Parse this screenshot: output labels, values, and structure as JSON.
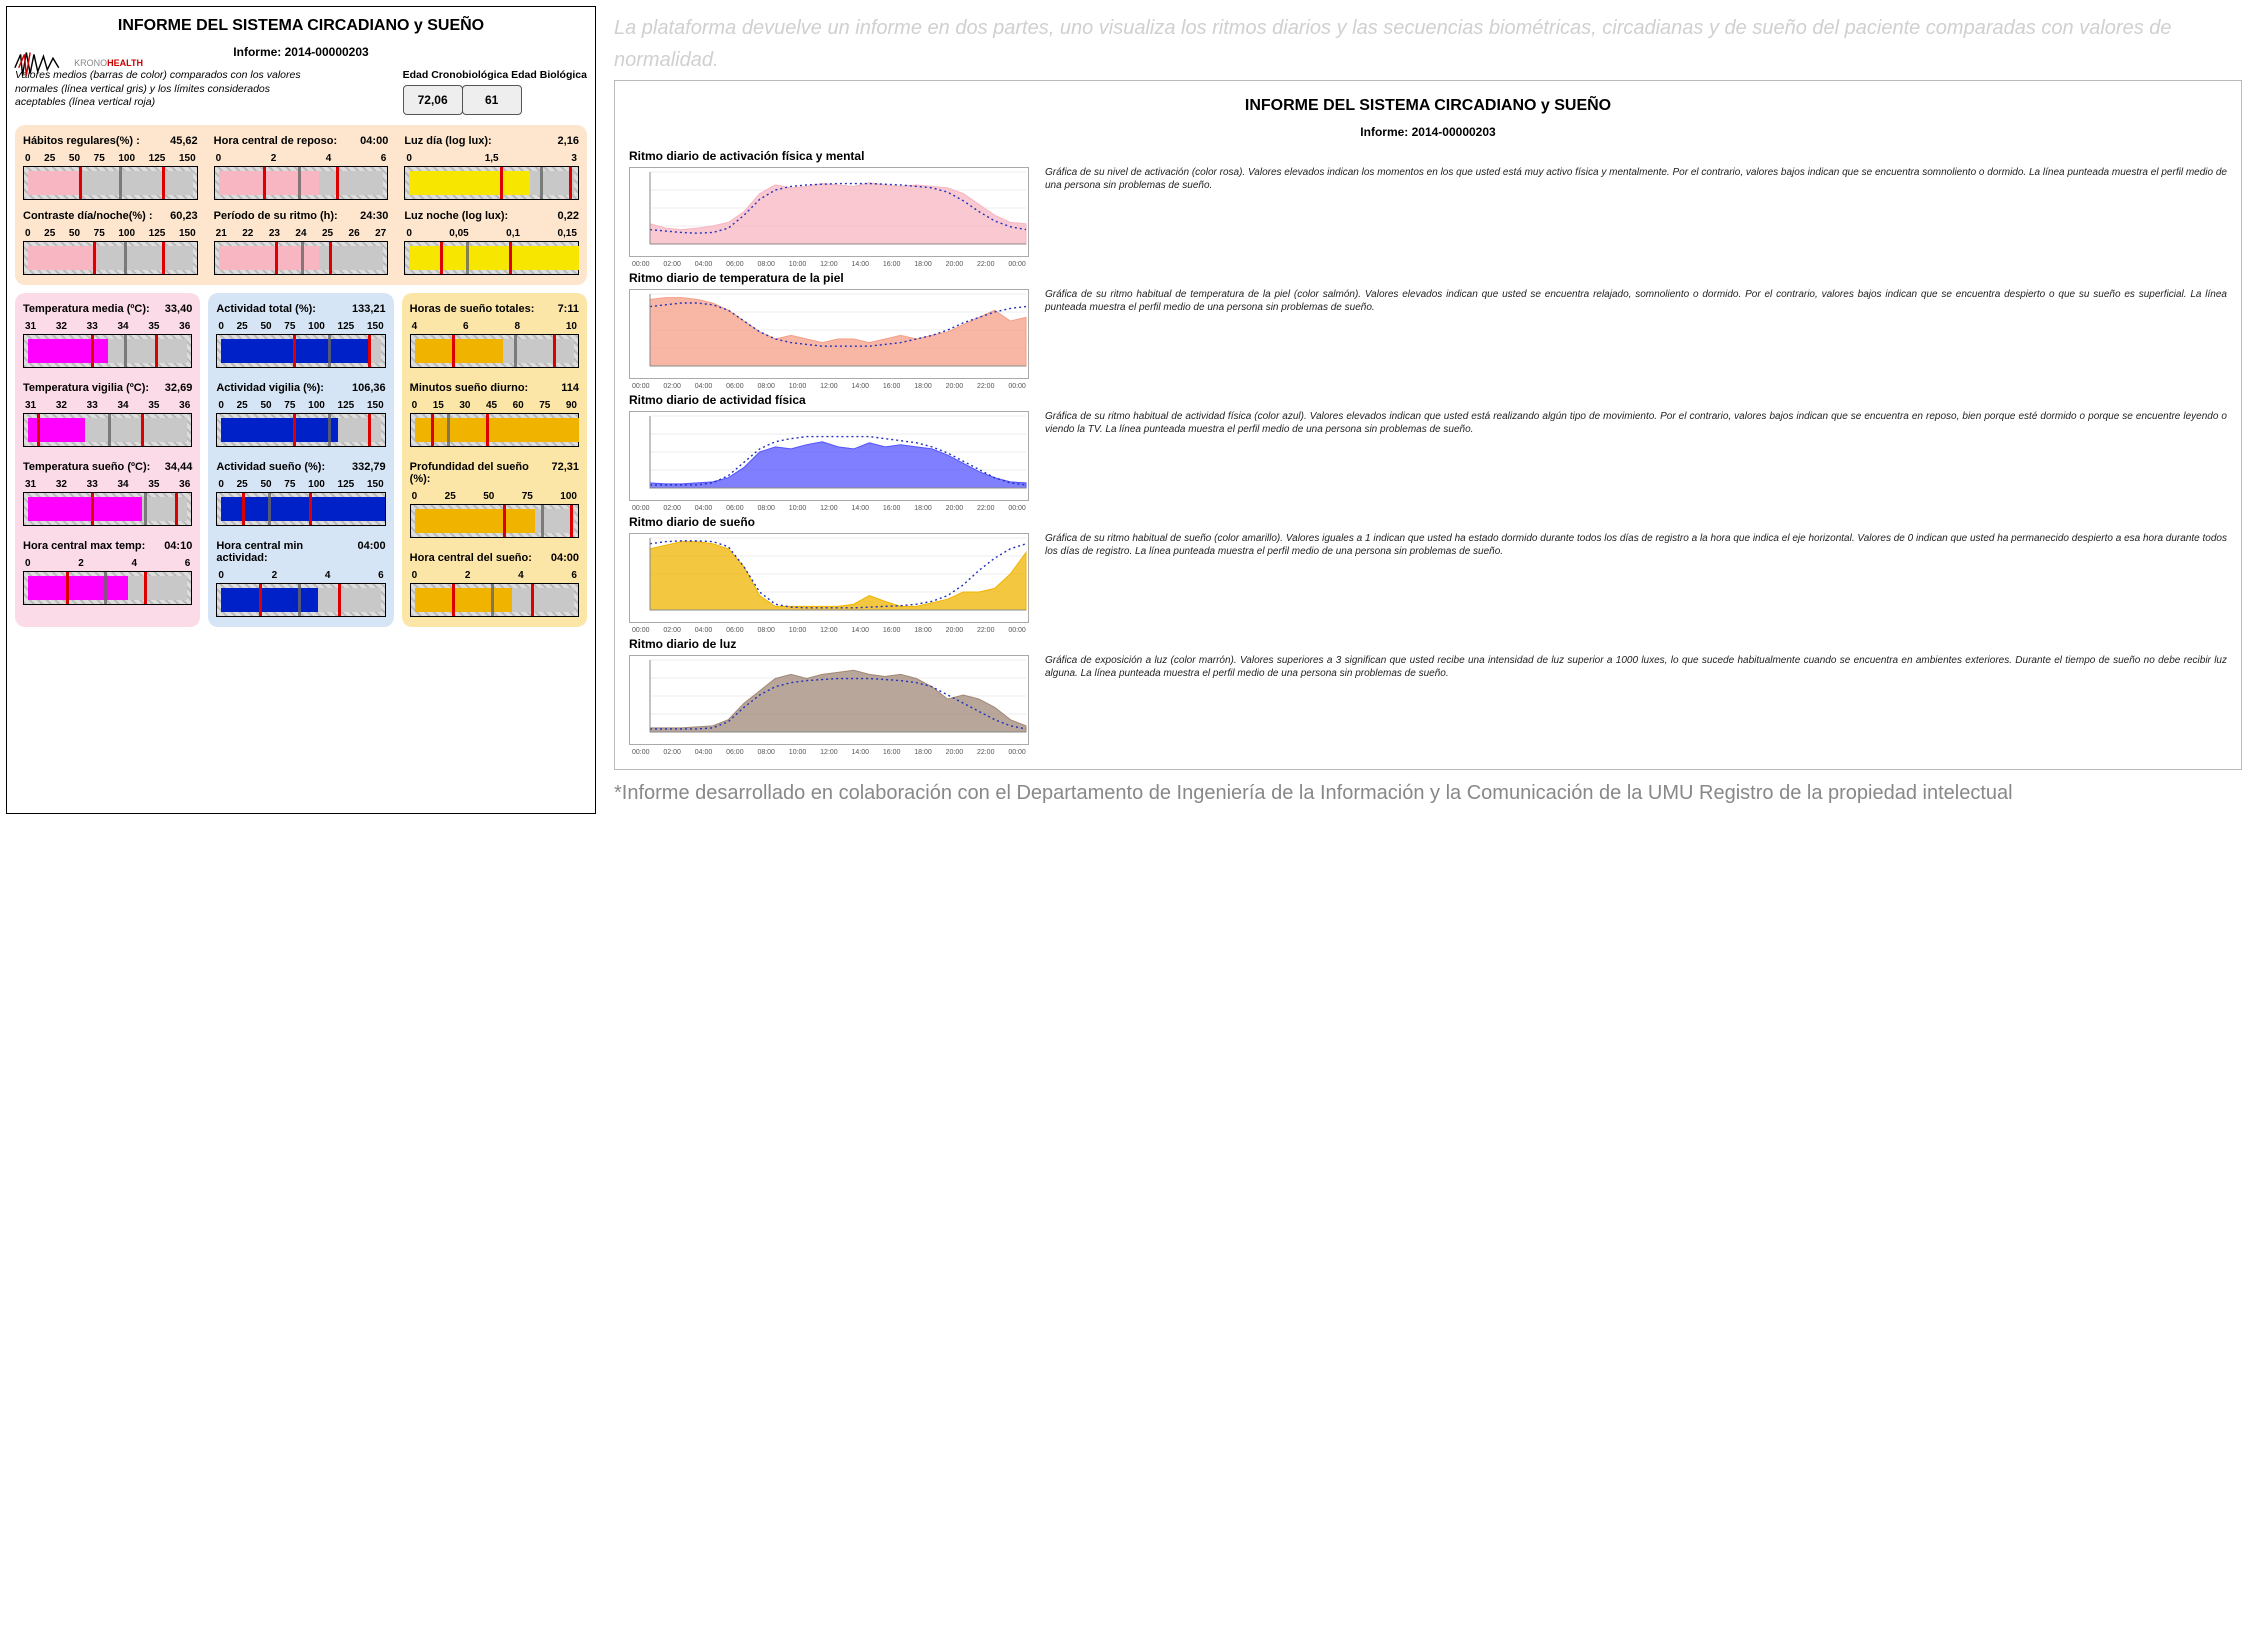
{
  "left": {
    "title": "INFORME DEL SISTEMA CIRCADIANO y SUEÑO",
    "informe_label": "Informe: 2014-00000203",
    "caption": "Valores medios (barras de color) comparados con los valores normales (línea vertical gris) y los límites considerados aceptables (línea vertical roja)",
    "age_header": "Edad Cronobiológica Edad Biológica",
    "edad_crono": "72,06",
    "edad_bio": "61",
    "top_metrics": [
      {
        "label": "Hábitos regulares(%) :",
        "value": "45,62",
        "ticks": [
          "0",
          "25",
          "50",
          "75",
          "100",
          "125",
          "150"
        ],
        "color": "#f7b6c1",
        "fill_pct": 30,
        "gray_pct": 55,
        "redA_pct": 32,
        "redB_pct": 80
      },
      {
        "label": "Hora central de reposo:",
        "value": "04:00",
        "ticks": [
          "0",
          "2",
          "4",
          "6"
        ],
        "color": "#f7b6c1",
        "fill_pct": 58,
        "gray_pct": 48,
        "redA_pct": 28,
        "redB_pct": 70
      },
      {
        "label": "Luz día (log lux):",
        "value": "2,16",
        "ticks": [
          "0",
          "1,5",
          "3"
        ],
        "color": "#f7e600",
        "fill_pct": 70,
        "gray_pct": 78,
        "redA_pct": 55,
        "redB_pct": 95
      },
      {
        "label": "Contraste día/noche(%) :",
        "value": "60,23",
        "ticks": [
          "0",
          "25",
          "50",
          "75",
          "100",
          "125",
          "150"
        ],
        "color": "#f7b6c1",
        "fill_pct": 40,
        "gray_pct": 58,
        "redA_pct": 40,
        "redB_pct": 80
      },
      {
        "label": "Período de su ritmo (h):",
        "value": "24:30",
        "ticks": [
          "21",
          "22",
          "23",
          "24",
          "25",
          "26",
          "27"
        ],
        "color": "#f7b6c1",
        "fill_pct": 58,
        "gray_pct": 50,
        "redA_pct": 35,
        "redB_pct": 66
      },
      {
        "label": "Luz noche (log lux):",
        "value": "0,22",
        "ticks": [
          "0",
          "0,05",
          "0,1",
          "0,15"
        ],
        "color": "#f7e600",
        "fill_pct": 98,
        "gray_pct": 35,
        "redA_pct": 20,
        "redB_pct": 60
      }
    ],
    "columns": [
      {
        "bg": "pink",
        "bar_color": "#ff00ff",
        "metrics": [
          {
            "label": "Temperatura media (ºC):",
            "value": "33,40",
            "ticks": [
              "31",
              "32",
              "33",
              "34",
              "35",
              "36"
            ],
            "fill_pct": 48,
            "gray_pct": 60,
            "redA_pct": 40,
            "redB_pct": 78
          },
          {
            "label": "Temperatura vigilia (ºC):",
            "value": "32,69",
            "ticks": [
              "31",
              "32",
              "33",
              "34",
              "35",
              "36"
            ],
            "fill_pct": 34,
            "gray_pct": 50,
            "redA_pct": 8,
            "redB_pct": 70
          },
          {
            "label": "Temperatura sueño (ºC):",
            "value": "34,44",
            "ticks": [
              "31",
              "32",
              "33",
              "34",
              "35",
              "36"
            ],
            "fill_pct": 68,
            "gray_pct": 72,
            "redA_pct": 40,
            "redB_pct": 90
          },
          {
            "label": "Hora central max temp:",
            "value": "04:10",
            "ticks": [
              "0",
              "2",
              "4",
              "6"
            ],
            "fill_pct": 60,
            "gray_pct": 48,
            "redA_pct": 25,
            "redB_pct": 72
          }
        ]
      },
      {
        "bg": "blue",
        "bar_color": "#0020c8",
        "metrics": [
          {
            "label": "Actividad total (%):",
            "value": "133,21",
            "ticks": [
              "0",
              "25",
              "50",
              "75",
              "100",
              "125",
              "150"
            ],
            "fill_pct": 88,
            "gray_pct": 66,
            "redA_pct": 45,
            "redB_pct": 90
          },
          {
            "label": "Actividad vigilia (%):",
            "value": "106,36",
            "ticks": [
              "0",
              "25",
              "50",
              "75",
              "100",
              "125",
              "150"
            ],
            "fill_pct": 70,
            "gray_pct": 66,
            "redA_pct": 45,
            "redB_pct": 90
          },
          {
            "label": "Actividad sueño (%):",
            "value": "332,79",
            "ticks": [
              "0",
              "25",
              "50",
              "75",
              "100",
              "125",
              "150"
            ],
            "fill_pct": 98,
            "gray_pct": 30,
            "redA_pct": 15,
            "redB_pct": 55
          },
          {
            "label": "Hora central min actividad:",
            "value": "04:00",
            "ticks": [
              "0",
              "2",
              "4",
              "6"
            ],
            "fill_pct": 58,
            "gray_pct": 48,
            "redA_pct": 25,
            "redB_pct": 72
          }
        ]
      },
      {
        "bg": "gold",
        "bar_color": "#f0b400",
        "metrics": [
          {
            "label": "Horas de sueño totales:",
            "value": "7:11",
            "ticks": [
              "4",
              "6",
              "8",
              "10"
            ],
            "fill_pct": 53,
            "gray_pct": 62,
            "redA_pct": 25,
            "redB_pct": 85
          },
          {
            "label": "Minutos sueño diurno:",
            "value": "114",
            "ticks": [
              "0",
              "15",
              "30",
              "45",
              "60",
              "75",
              "90"
            ],
            "fill_pct": 98,
            "gray_pct": 22,
            "redA_pct": 12,
            "redB_pct": 45
          },
          {
            "label": "Profundidad del sueño (%):",
            "value": "72,31",
            "ticks": [
              "0",
              "25",
              "50",
              "75",
              "100"
            ],
            "fill_pct": 72,
            "gray_pct": 78,
            "redA_pct": 55,
            "redB_pct": 95
          },
          {
            "label": "Hora central del sueño:",
            "value": "04:00",
            "ticks": [
              "0",
              "2",
              "4",
              "6"
            ],
            "fill_pct": 58,
            "gray_pct": 48,
            "redA_pct": 25,
            "redB_pct": 72
          }
        ]
      }
    ]
  },
  "right": {
    "faded_intro": "La plataforma devuelve un informe en dos partes, uno visualiza los ritmos diarios y las secuencias biométricas, circadianas y de sueño del paciente comparadas con valores de normalidad.",
    "title": "INFORME DEL SISTEMA CIRCADIANO y SUEÑO",
    "informe_label": "Informe:    2014-00000203",
    "rhythms": [
      {
        "title": "Ritmo diario de activación física y mental",
        "color": "#f7b6c1",
        "yrange": [
          0,
          1
        ],
        "series": [
          0.28,
          0.22,
          0.2,
          0.22,
          0.25,
          0.3,
          0.45,
          0.7,
          0.82,
          0.78,
          0.8,
          0.84,
          0.82,
          0.8,
          0.85,
          0.82,
          0.8,
          0.82,
          0.8,
          0.78,
          0.7,
          0.55,
          0.4,
          0.3,
          0.28
        ],
        "profile": [
          0.2,
          0.18,
          0.16,
          0.15,
          0.16,
          0.22,
          0.4,
          0.62,
          0.75,
          0.8,
          0.82,
          0.83,
          0.84,
          0.84,
          0.84,
          0.83,
          0.82,
          0.8,
          0.78,
          0.72,
          0.6,
          0.45,
          0.32,
          0.24,
          0.2
        ],
        "desc": "Gráfica de su nivel de activación (color rosa). Valores elevados indican los momentos en los que usted está muy activo física y mentalmente. Por el contrario, valores bajos indican que se encuentra somnoliento o dormido. La línea punteada muestra el perfil medio de una persona sin problemas de sueño."
      },
      {
        "title": "Ritmo diario de temperatura de la piel",
        "color": "#f59f86",
        "yrange": [
          31.5,
          35.5
        ],
        "series": [
          35.2,
          35.3,
          35.3,
          35.2,
          35.0,
          34.6,
          34.0,
          33.4,
          33.0,
          33.2,
          33.0,
          32.8,
          33.0,
          33.0,
          32.8,
          33.0,
          33.2,
          33.0,
          33.2,
          33.4,
          33.8,
          34.2,
          34.6,
          34.0,
          34.2
        ],
        "profile": [
          34.8,
          34.9,
          35.0,
          35.0,
          34.9,
          34.6,
          34.0,
          33.4,
          33.0,
          32.8,
          32.7,
          32.6,
          32.6,
          32.6,
          32.6,
          32.7,
          32.8,
          33.0,
          33.2,
          33.5,
          33.9,
          34.2,
          34.5,
          34.7,
          34.8
        ],
        "desc": "Gráfica de su ritmo habitual de temperatura de la piel (color salmón). Valores elevados indican que usted se encuentra relajado, somnoliento o dormido. Por el contrario, valores bajos indican que se encuentra despierto o que su sueño es superficial. La línea punteada muestra el perfil medio de una persona sin problemas de sueño."
      },
      {
        "title": "Ritmo diario de actividad física",
        "color": "#5454ff",
        "yrange": [
          0,
          70
        ],
        "series": [
          5,
          4,
          4,
          5,
          6,
          10,
          20,
          35,
          40,
          38,
          42,
          45,
          40,
          38,
          44,
          40,
          42,
          40,
          38,
          32,
          24,
          16,
          10,
          6,
          5
        ],
        "profile": [
          3,
          3,
          3,
          3,
          5,
          12,
          25,
          38,
          45,
          48,
          50,
          50,
          50,
          50,
          50,
          48,
          46,
          44,
          40,
          34,
          26,
          18,
          10,
          5,
          3
        ],
        "desc": "Gráfica de su ritmo habitual de actividad física (color azul). Valores elevados indican que usted está realizando algún tipo de movimiento. Por el contrario, valores bajos indican que se encuentra en reposo, bien porque esté dormido o porque se encuentre leyendo o viendo la TV. La línea punteada muestra el perfil medio de una persona sin problemas de sueño."
      },
      {
        "title": "Ritmo diario de sueño",
        "color": "#f0b400",
        "yrange": [
          0,
          1
        ],
        "series": [
          0.85,
          0.9,
          0.95,
          0.95,
          0.92,
          0.85,
          0.6,
          0.2,
          0.05,
          0.05,
          0.05,
          0.05,
          0.05,
          0.08,
          0.2,
          0.12,
          0.05,
          0.05,
          0.1,
          0.15,
          0.25,
          0.25,
          0.3,
          0.5,
          0.8
        ],
        "profile": [
          0.92,
          0.95,
          0.96,
          0.96,
          0.95,
          0.88,
          0.6,
          0.25,
          0.08,
          0.04,
          0.03,
          0.03,
          0.03,
          0.03,
          0.04,
          0.05,
          0.06,
          0.08,
          0.12,
          0.2,
          0.35,
          0.55,
          0.72,
          0.85,
          0.92
        ],
        "desc": "Gráfica de su ritmo habitual de sueño (color amarillo). Valores iguales a 1 indican que usted ha estado dormido durante todos los días de registro a la hora que indica el eje horizontal. Valores de 0 indican que usted ha permanecido despierto a esa hora durante todos los días de registro. La línea punteada muestra el perfil medio de una persona sin problemas de sueño."
      },
      {
        "title": "Ritmo diario de luz",
        "color": "#a08878",
        "yrange": [
          0,
          3.5
        ],
        "series": [
          0.2,
          0.2,
          0.2,
          0.25,
          0.3,
          0.6,
          1.4,
          2.0,
          2.6,
          2.8,
          2.6,
          2.8,
          2.9,
          3.0,
          2.8,
          2.7,
          2.8,
          2.6,
          2.2,
          1.6,
          1.8,
          1.6,
          1.2,
          0.6,
          0.3
        ],
        "profile": [
          0.15,
          0.15,
          0.15,
          0.15,
          0.2,
          0.5,
          1.2,
          1.8,
          2.2,
          2.4,
          2.5,
          2.55,
          2.6,
          2.6,
          2.6,
          2.55,
          2.5,
          2.4,
          2.2,
          1.8,
          1.4,
          1.0,
          0.6,
          0.3,
          0.15
        ],
        "desc": "Gráfica de exposición a luz (color marrón). Valores superiores a 3 significan que usted recibe una intensidad de luz superior a 1000 luxes, lo que sucede habitualmente cuando se encuentra en ambientes exteriores. Durante el tiempo de sueño no debe recibir luz alguna. La línea punteada muestra el perfil medio de una persona sin problemas de sueño."
      }
    ],
    "x_ticks": [
      "00:00",
      "02:00",
      "04:00",
      "06:00",
      "08:00",
      "10:00",
      "12:00",
      "14:00",
      "16:00",
      "18:00",
      "20:00",
      "22:00",
      "00:00"
    ],
    "footnote": "*Informe desarrollado en colaboración con el Departamento de Ingeniería de la Información y la Comunicación de la UMU Registro de la propiedad intelectual"
  }
}
